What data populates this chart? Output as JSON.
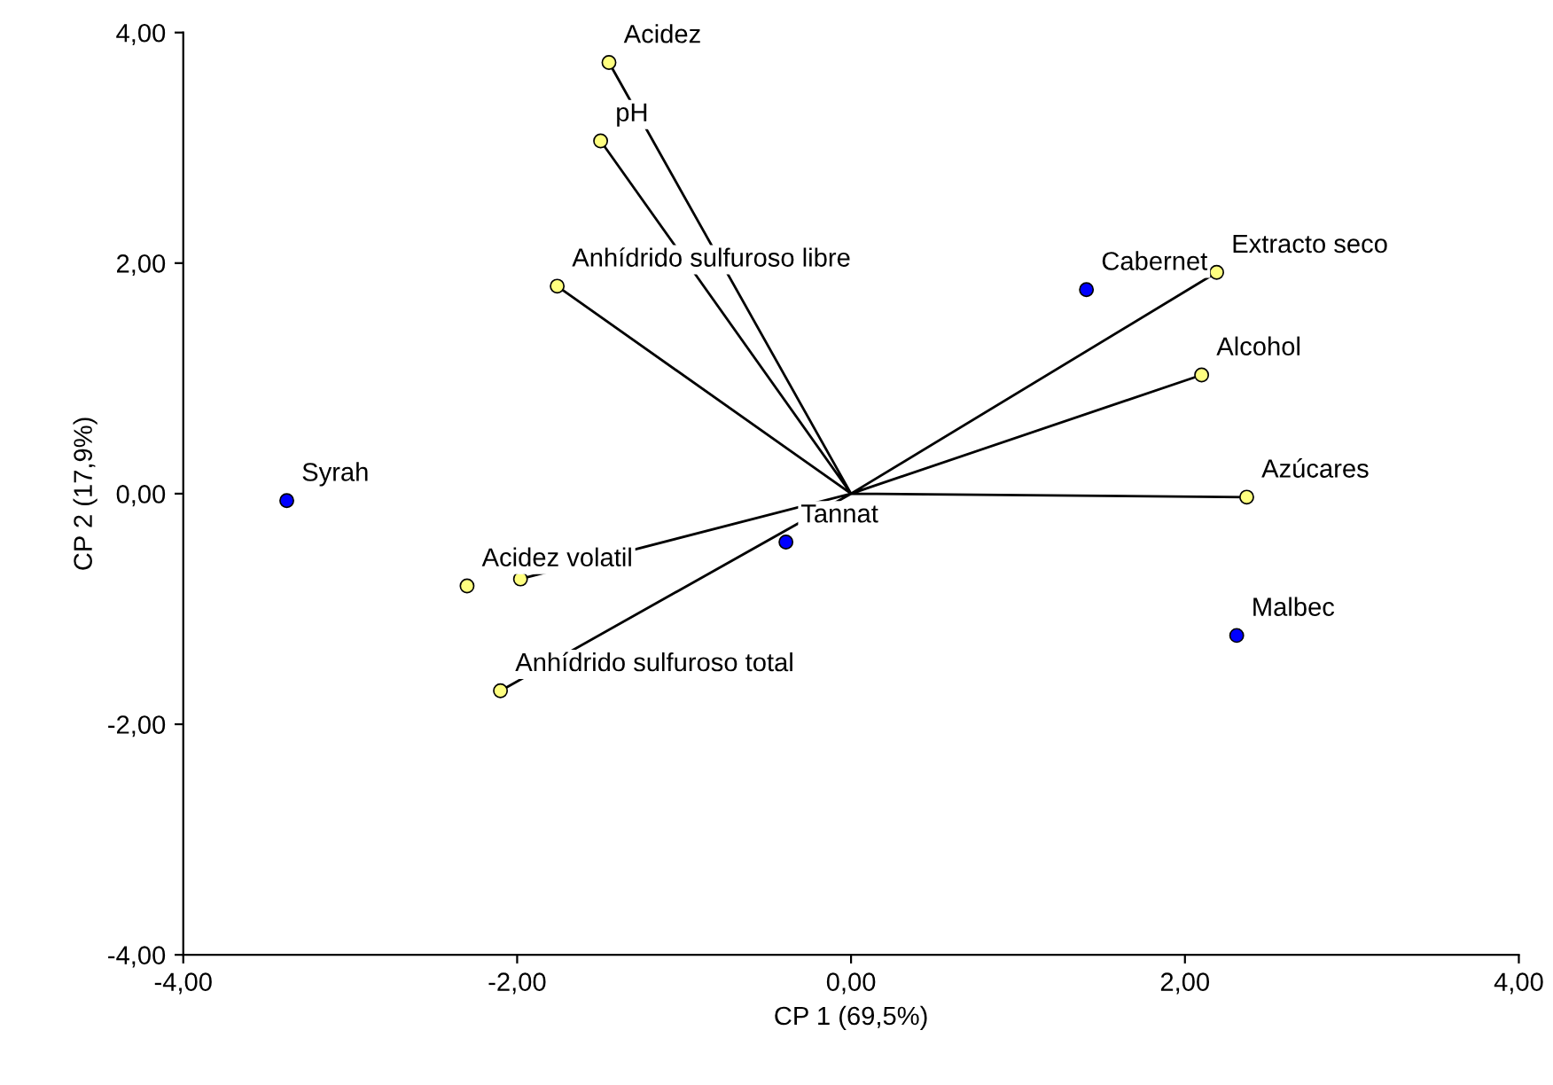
{
  "chart_data": {
    "type": "scatter",
    "xlabel": "CP 1 (69,5%)",
    "ylabel": "CP 2 (17,9%)",
    "xlim": [
      -4,
      4
    ],
    "ylim": [
      -4,
      4
    ],
    "xticks": [
      {
        "value": -4,
        "label": "-4,00"
      },
      {
        "value": -2,
        "label": "-2,00"
      },
      {
        "value": 0,
        "label": "0,00"
      },
      {
        "value": 2,
        "label": "2,00"
      },
      {
        "value": 4,
        "label": "4,00"
      }
    ],
    "yticks": [
      {
        "value": -4,
        "label": "-4,00"
      },
      {
        "value": -2,
        "label": "-2,00"
      },
      {
        "value": 0,
        "label": "0,00"
      },
      {
        "value": 2,
        "label": "2,00"
      },
      {
        "value": 4,
        "label": "4,00"
      }
    ],
    "grid": false,
    "legend": false,
    "marker": "circle",
    "series": [
      {
        "type": "line",
        "marker": "none",
        "color": "#000000",
        "x": [
          0,
          -1.45,
          null,
          0,
          -1.5,
          null,
          0,
          -1.76,
          null,
          0,
          2.19,
          null,
          0,
          2.1,
          null,
          0,
          2.37,
          null,
          0,
          -1.98,
          null,
          0,
          -2.1
        ],
        "values": [
          0,
          3.74,
          null,
          0,
          3.06,
          null,
          0,
          1.8,
          null,
          0,
          1.92,
          null,
          0,
          1.03,
          null,
          0,
          -0.03,
          null,
          0,
          -0.74,
          null,
          0,
          -1.71
        ]
      },
      {
        "color": "#ffff80",
        "x": [
          -1.45,
          -1.5,
          -1.76,
          2.19,
          2.1,
          2.37,
          -2.3,
          -1.98,
          -2.1
        ],
        "values": [
          3.74,
          3.06,
          1.8,
          1.92,
          1.03,
          -0.03,
          -0.8,
          -0.74,
          -1.71
        ]
      },
      {
        "color": "#0000ff",
        "x": [
          1.41,
          2.31,
          -3.38,
          -0.39
        ],
        "values": [
          1.77,
          -1.23,
          -0.06,
          -0.42
        ]
      }
    ],
    "annotations": [
      {
        "text": "Acidez",
        "x": -1.45,
        "y": 3.74
      },
      {
        "text": "pH",
        "x": -1.5,
        "y": 3.06
      },
      {
        "text": "Anhídrido sulfuroso libre",
        "x": -1.76,
        "y": 1.8
      },
      {
        "text": "Cabernet",
        "x": 1.41,
        "y": 1.77
      },
      {
        "text": "Extracto seco",
        "x": 2.19,
        "y": 1.92
      },
      {
        "text": "Alcohol",
        "x": 2.1,
        "y": 1.03
      },
      {
        "text": "Azúcares",
        "x": 2.37,
        "y": -0.03
      },
      {
        "text": "Malbec",
        "x": 2.31,
        "y": -1.23
      },
      {
        "text": "Syrah",
        "x": -3.38,
        "y": -0.06
      },
      {
        "text": "Acidez volatil",
        "x": -2.3,
        "y": -0.8
      },
      {
        "text": "Anhídrido sulfuroso total",
        "x": -2.1,
        "y": -1.71
      },
      {
        "text": "Tannat",
        "x": -0.39,
        "y": -0.42
      }
    ]
  }
}
